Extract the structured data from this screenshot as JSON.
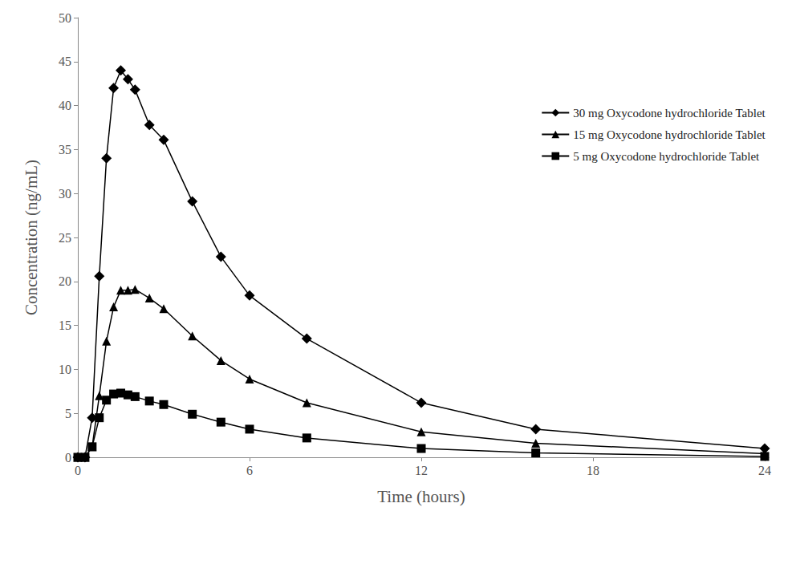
{
  "chart_data": {
    "type": "line",
    "x_label": "Time (hours)",
    "y_label": "Concentration (ng/mL)",
    "xlim": [
      0,
      24
    ],
    "xticks": [
      0,
      6,
      12,
      18,
      24
    ],
    "ylim": [
      0,
      50
    ],
    "yticks": [
      0,
      5,
      10,
      15,
      20,
      25,
      30,
      35,
      40,
      45,
      50
    ],
    "grid": false,
    "legend": "upper right",
    "x": [
      0,
      0.25,
      0.5,
      0.75,
      1,
      1.25,
      1.5,
      1.75,
      2,
      2.5,
      3,
      4,
      5,
      6,
      8,
      12,
      16,
      24
    ],
    "series": [
      {
        "name": "30 mg Oxycodone hydrochloride Tablet",
        "color": "#000000",
        "marker": "diamond",
        "line_style": "solid",
        "values": [
          0,
          0,
          4.5,
          20.6,
          34.0,
          42.0,
          44.0,
          43.0,
          41.8,
          37.8,
          36.1,
          29.1,
          22.8,
          18.4,
          13.5,
          6.2,
          3.2,
          1.0
        ]
      },
      {
        "name": "15 mg Oxycodone hydrochloride Tablet",
        "color": "#000000",
        "marker": "triangle",
        "line_style": "solid",
        "values": [
          0,
          0,
          1.2,
          7.0,
          13.2,
          17.1,
          19.0,
          19.0,
          19.1,
          18.1,
          16.9,
          13.8,
          11.0,
          8.9,
          6.2,
          2.9,
          1.6,
          0.4
        ]
      },
      {
        "name": "5 mg Oxycodone hydrochloride Tablet",
        "color": "#000000",
        "marker": "square",
        "line_style": "solid",
        "values": [
          0,
          0,
          1.2,
          4.5,
          6.5,
          7.2,
          7.3,
          7.1,
          6.9,
          6.4,
          6.0,
          4.9,
          4.0,
          3.2,
          2.2,
          1.0,
          0.5,
          0.1
        ]
      }
    ]
  }
}
